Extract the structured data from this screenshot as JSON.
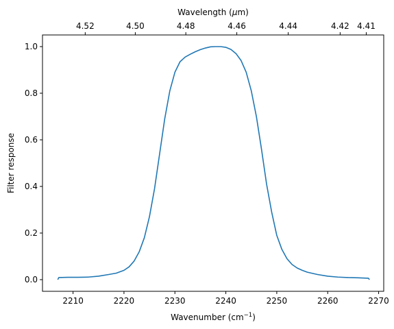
{
  "chart_data": {
    "type": "line",
    "title": "",
    "xlabel": {
      "base": "Wavenumber (cm",
      "sup": "−1",
      "tail": ")"
    },
    "ylabel": "Filter response",
    "top_xlabel": {
      "base": "Wavelength (",
      "mu": "μ",
      "tail": "m)"
    },
    "xlim": [
      2204,
      2271
    ],
    "ylim": [
      -0.05,
      1.05
    ],
    "xticks": [
      2210,
      2220,
      2230,
      2240,
      2250,
      2260,
      2270
    ],
    "yticks": [
      0.0,
      0.2,
      0.4,
      0.6,
      0.8,
      1.0
    ],
    "ytick_labels": [
      "0.0",
      "0.2",
      "0.4",
      "0.6",
      "0.8",
      "1.0"
    ],
    "top_ticks_um": [
      4.52,
      4.5,
      4.48,
      4.46,
      4.44,
      4.42,
      4.41
    ],
    "top_tick_labels": [
      "4.52",
      "4.50",
      "4.48",
      "4.46",
      "4.44",
      "4.42",
      "4.41"
    ],
    "grid": false,
    "series": [
      {
        "color": "#1f77b4",
        "x": [
          2207.0,
          2207.2,
          2209,
          2211,
          2213,
          2215,
          2217,
          2218.5,
          2220,
          2221,
          2222,
          2223,
          2224,
          2225,
          2226,
          2227,
          2228,
          2229,
          2230,
          2231,
          2232,
          2233,
          2234,
          2235,
          2236,
          2237,
          2238,
          2239,
          2240,
          2241,
          2242,
          2243,
          2244,
          2245,
          2246,
          2247,
          2248,
          2249,
          2250,
          2251,
          2252,
          2253,
          2254,
          2255,
          2256,
          2258,
          2260,
          2262,
          2264,
          2266,
          2268.0,
          2268.2
        ],
        "y": [
          0.0,
          0.009,
          0.01,
          0.01,
          0.011,
          0.015,
          0.022,
          0.028,
          0.04,
          0.055,
          0.08,
          0.12,
          0.18,
          0.27,
          0.39,
          0.54,
          0.69,
          0.81,
          0.89,
          0.935,
          0.955,
          0.967,
          0.978,
          0.987,
          0.994,
          0.999,
          1.0,
          1.0,
          0.997,
          0.988,
          0.97,
          0.94,
          0.89,
          0.81,
          0.7,
          0.56,
          0.41,
          0.29,
          0.19,
          0.13,
          0.09,
          0.065,
          0.05,
          0.04,
          0.032,
          0.022,
          0.015,
          0.011,
          0.009,
          0.008,
          0.006,
          0.0
        ]
      }
    ]
  }
}
